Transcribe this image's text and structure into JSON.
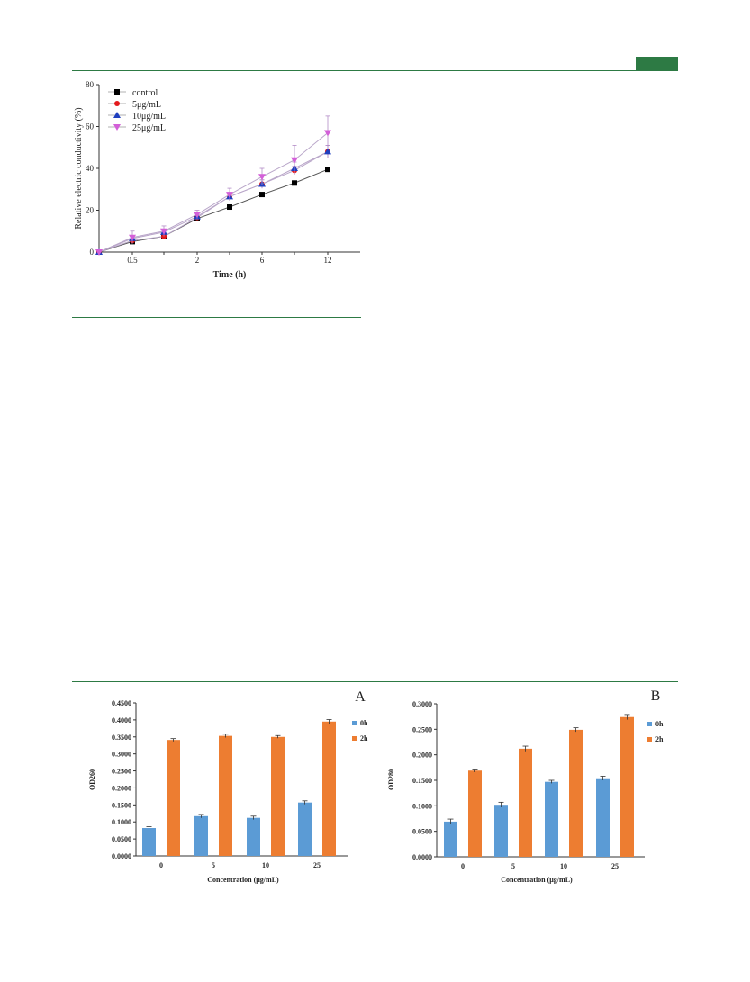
{
  "header": {
    "accent_color": "#2d7a44"
  },
  "chart_data": [
    {
      "type": "line",
      "x": [
        "0",
        "0.5",
        "1",
        "2",
        "4",
        "6",
        "9",
        "12"
      ],
      "x_tick_labels": [
        "0.5",
        "2",
        "6",
        "12"
      ],
      "xlabel": "Time (h)",
      "ylabel": "Relative electric conductivity (%)",
      "ylim": [
        0,
        80
      ],
      "y_ticks": [
        "0",
        "20",
        "40",
        "60",
        "80"
      ],
      "legend_position": "top-left",
      "series": [
        {
          "name": "control",
          "color": "#000000",
          "marker": "square",
          "values": [
            0,
            5,
            7.5,
            16,
            21.5,
            27.5,
            33,
            39.5
          ],
          "errors": [
            0,
            0.5,
            0.5,
            0.8,
            0.6,
            0.8,
            0.7,
            0.8
          ]
        },
        {
          "name": "5μg/mL",
          "color": "#e31a1c",
          "marker": "circle",
          "values": [
            0,
            5.5,
            7.5,
            16.5,
            26.5,
            32.5,
            39,
            48
          ],
          "errors": [
            0,
            1,
            1,
            1,
            1.5,
            2,
            2,
            3
          ]
        },
        {
          "name": "10μg/mL",
          "color": "#1f3fbf",
          "marker": "triangle",
          "values": [
            0,
            6.5,
            9.5,
            17,
            26.5,
            32.5,
            40,
            48
          ],
          "errors": [
            0,
            1.5,
            1.5,
            1.5,
            2,
            2,
            3,
            3
          ]
        },
        {
          "name": "25μg/mL",
          "color": "#d35fd8",
          "marker": "triangle-down",
          "values": [
            0,
            7,
            10,
            18,
            27.5,
            36,
            44,
            57
          ],
          "errors": [
            0,
            3,
            2.5,
            2,
            3,
            4,
            7,
            8
          ]
        }
      ]
    },
    {
      "type": "bar",
      "panel_label": "A",
      "categories": [
        "0",
        "5",
        "10",
        "25"
      ],
      "xlabel": "Concentration (μg/mL)",
      "ylabel": "OD260",
      "ylim": [
        0,
        0.45
      ],
      "y_ticks": [
        "0.0000",
        "0.0500",
        "0.1000",
        "0.1500",
        "0.2000",
        "0.2500",
        "0.3000",
        "0.3500",
        "0.4000",
        "0.4500"
      ],
      "legend_position": "right",
      "series": [
        {
          "name": "0h",
          "color": "#5b9bd5",
          "values": [
            0.082,
            0.117,
            0.112,
            0.157
          ],
          "errors": [
            0.004,
            0.005,
            0.005,
            0.005
          ]
        },
        {
          "name": "2h",
          "color": "#ed7d31",
          "values": [
            0.341,
            0.353,
            0.35,
            0.395
          ],
          "errors": [
            0.004,
            0.005,
            0.004,
            0.006
          ]
        }
      ]
    },
    {
      "type": "bar",
      "panel_label": "B",
      "categories": [
        "0",
        "5",
        "10",
        "25"
      ],
      "xlabel": "Concentration (μg/mL)",
      "ylabel": "OD280",
      "ylim": [
        0,
        0.3
      ],
      "y_ticks": [
        "0.0000",
        "0.0500",
        "0.1000",
        "0.1500",
        "0.2000",
        "0.2500",
        "0.3000"
      ],
      "legend_position": "right",
      "series": [
        {
          "name": "0h",
          "color": "#5b9bd5",
          "values": [
            0.069,
            0.102,
            0.147,
            0.154
          ],
          "errors": [
            0.005,
            0.005,
            0.003,
            0.004
          ]
        },
        {
          "name": "2h",
          "color": "#ed7d31",
          "values": [
            0.169,
            0.212,
            0.249,
            0.274
          ],
          "errors": [
            0.003,
            0.005,
            0.004,
            0.005
          ]
        }
      ]
    }
  ]
}
